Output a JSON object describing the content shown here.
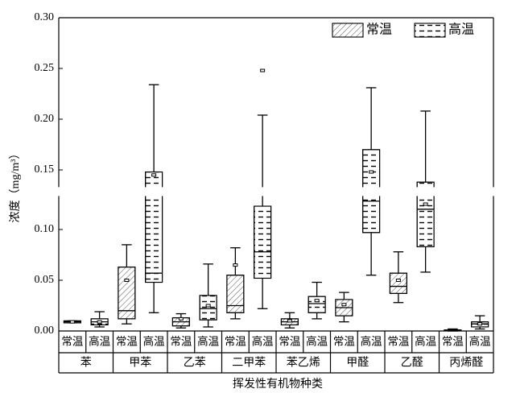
{
  "chart_data": {
    "type": "box",
    "y_label": "浓度（mg/m³）",
    "x_label": "挥发性有机物种类",
    "categories": [
      "苯",
      "甲苯",
      "乙苯",
      "二甲苯",
      "苯乙烯",
      "甲醛",
      "乙醛",
      "丙烯醛"
    ],
    "ylim": [
      0,
      0.3
    ],
    "axis_break": 0.133,
    "yticks": [
      {
        "value": 0,
        "label": "0.00"
      },
      {
        "value": 0.05,
        "label": "0.05"
      },
      {
        "value": 0.1,
        "label": "0.10"
      },
      {
        "value": 0.15,
        "label": "0.15"
      },
      {
        "value": 0.2,
        "label": "0.20"
      },
      {
        "value": 0.25,
        "label": "0.25"
      },
      {
        "value": 0.3,
        "label": "0.30"
      }
    ],
    "legend": "top-right",
    "series": [
      {
        "name": "常温",
        "pattern": "hatch",
        "color": "#000000",
        "boxes": [
          {
            "min": 0.008,
            "q1": 0.008,
            "median": 0.009,
            "q3": 0.01,
            "max": 0.01,
            "mean": 0.009
          },
          {
            "min": 0.007,
            "q1": 0.012,
            "median": 0.02,
            "q3": 0.063,
            "max": 0.085,
            "mean": 0.05
          },
          {
            "min": 0.003,
            "q1": 0.005,
            "median": 0.009,
            "q3": 0.013,
            "max": 0.017,
            "mean": 0.012
          },
          {
            "min": 0.012,
            "q1": 0.018,
            "median": 0.025,
            "q3": 0.055,
            "max": 0.082,
            "mean": 0.065
          },
          {
            "min": 0.003,
            "q1": 0.006,
            "median": 0.009,
            "q3": 0.012,
            "max": 0.018,
            "mean": 0.01
          },
          {
            "min": 0.009,
            "q1": 0.015,
            "median": 0.023,
            "q3": 0.031,
            "max": 0.038,
            "mean": 0.026
          },
          {
            "min": 0.028,
            "q1": 0.037,
            "median": 0.044,
            "q3": 0.057,
            "max": 0.078,
            "mean": 0.05
          },
          {
            "min": 0.0,
            "q1": 0.0005,
            "median": 0.001,
            "q3": 0.001,
            "max": 0.002
          }
        ]
      },
      {
        "name": "高温",
        "pattern": "dash",
        "color": "#000000",
        "boxes": [
          {
            "min": 0.004,
            "q1": 0.006,
            "median": 0.009,
            "q3": 0.012,
            "max": 0.019,
            "mean": 0.009
          },
          {
            "min": 0.018,
            "q1": 0.048,
            "median": 0.057,
            "q3": 0.148,
            "max": 0.234,
            "mean": 0.145
          },
          {
            "min": 0.004,
            "q1": 0.011,
            "median": 0.022,
            "q3": 0.035,
            "max": 0.066,
            "mean": 0.025
          },
          {
            "min": 0.022,
            "q1": 0.052,
            "median": 0.078,
            "q3": 0.123,
            "max": 0.204,
            "outliers": [
              0.248
            ]
          },
          {
            "min": 0.012,
            "q1": 0.018,
            "median": 0.027,
            "q3": 0.034,
            "max": 0.048,
            "mean": 0.03
          },
          {
            "min": 0.055,
            "q1": 0.097,
            "median": 0.128,
            "q3": 0.17,
            "max": 0.231,
            "mean": 0.148
          },
          {
            "min": 0.058,
            "q1": 0.083,
            "median": 0.12,
            "q3": 0.138,
            "max": 0.208,
            "mean": 0.125
          },
          {
            "min": 0.002,
            "q1": 0.004,
            "median": 0.007,
            "q3": 0.009,
            "max": 0.015,
            "mean": 0.007
          }
        ]
      }
    ]
  }
}
